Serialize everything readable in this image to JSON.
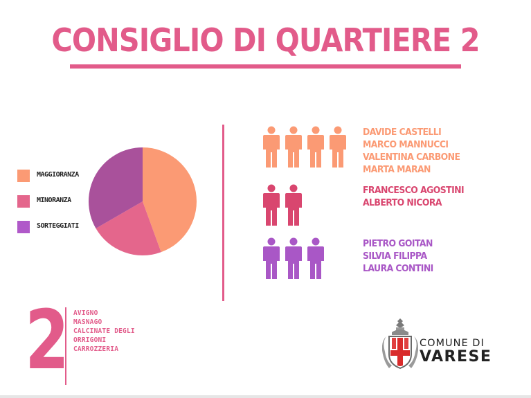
{
  "title": "CONSIGLIO DI QUARTIERE 2",
  "chart_data": {
    "type": "pie",
    "categories": [
      "MAGGIORANZA",
      "MINORANZA",
      "SORTEGGIATI"
    ],
    "values": [
      4,
      2,
      3
    ],
    "colors": [
      "#fb9a74",
      "#e4668c",
      "#a9519b"
    ],
    "legend_position": "left"
  },
  "groups": [
    {
      "count": 4,
      "color": "#fb9a74",
      "members": [
        "DAVIDE CASTELLI",
        "MARCO MANNUCCI",
        "VALENTINA CARBONE",
        "MARTA MARAN"
      ]
    },
    {
      "count": 2,
      "color": "#d9466f",
      "members": [
        "FRANCESCO AGOSTINI",
        "ALBERTO NICORA"
      ]
    },
    {
      "count": 3,
      "color": "#a957c6",
      "members": [
        "PIETRO GOITAN",
        "SILVIA FILIPPA",
        "LAURA CONTINI"
      ]
    }
  ],
  "district": {
    "number": "2",
    "areas": [
      "AVIGNO",
      "MASNAGO",
      "CALCINATE DEGLI",
      "ORRIGONI",
      "CARROZZERIA"
    ]
  },
  "logo": {
    "line1": "COMUNE DI",
    "line2": "VARESE"
  },
  "legend_colors": [
    "#fb9a74",
    "#e4668c",
    "#b059c9"
  ],
  "colors": {
    "accent": "#e25b8a"
  }
}
